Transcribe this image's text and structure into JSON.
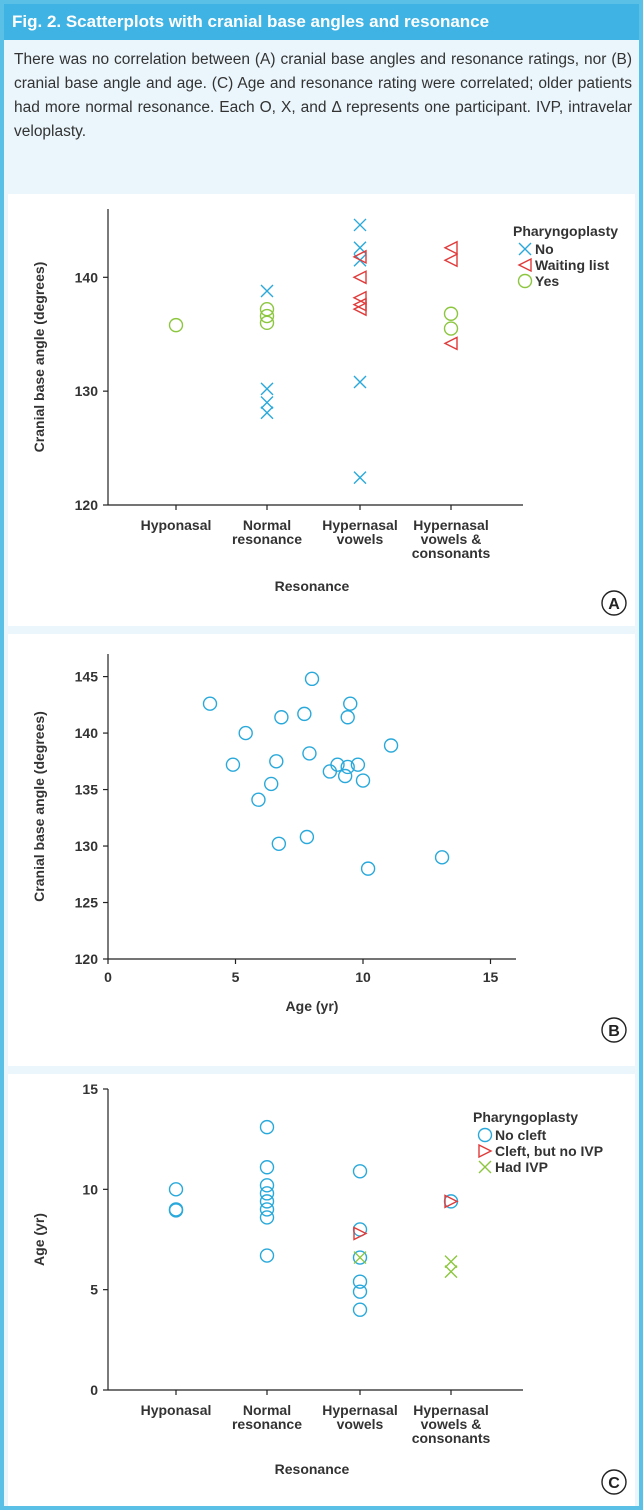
{
  "figure": {
    "title": "Fig. 2. Scatterplots with cranial base angles and resonance",
    "caption": "There was no correlation between (A) cranial base angles and resonance ratings, nor (B) cranial base angle and age. (C) Age and resonance rating were correlated; older patients had more normal resonance. Each O, X, and Δ represents one participant. IVP, intravelar veloplasty."
  },
  "colors": {
    "accent": "#3fb3e3",
    "blue": "#29a9db",
    "red": "#e03a3a",
    "green": "#8cc63f"
  },
  "chart_data": [
    {
      "panel": "A",
      "type": "scatter",
      "xlabel": "Resonance",
      "ylabel": "Cranial base angle (degrees)",
      "categories": [
        [
          "Hyponasal"
        ],
        [
          "Normal",
          "resonance"
        ],
        [
          "Hypernasal",
          "vowels"
        ],
        [
          "Hypernasal",
          "vowels &",
          "consonants"
        ]
      ],
      "ylim": [
        120,
        146
      ],
      "yticks": [
        120,
        130,
        140
      ],
      "legend_title": "Pharyngoplasty",
      "legend_position": "top-right",
      "series": [
        {
          "name": "No",
          "marker": "x",
          "color": "#29a9db",
          "points": [
            [
              1,
              138.8
            ],
            [
              1,
              130.2
            ],
            [
              1,
              129.0
            ],
            [
              1,
              128.1
            ],
            [
              2,
              144.6
            ],
            [
              2,
              142.6
            ],
            [
              2,
              141.5
            ],
            [
              2,
              130.8
            ],
            [
              2,
              122.4
            ]
          ]
        },
        {
          "name": "Waiting list",
          "marker": "triangle-left",
          "color": "#e03a3a",
          "points": [
            [
              2,
              141.8
            ],
            [
              2,
              140.0
            ],
            [
              2,
              138.2
            ],
            [
              2,
              137.6
            ],
            [
              2,
              137.2
            ],
            [
              3,
              142.6
            ],
            [
              3,
              141.5
            ],
            [
              3,
              134.2
            ]
          ]
        },
        {
          "name": "Yes",
          "marker": "circle",
          "color": "#8cc63f",
          "points": [
            [
              0,
              135.8
            ],
            [
              1,
              137.2
            ],
            [
              1,
              136.6
            ],
            [
              1,
              136.0
            ],
            [
              3,
              136.8
            ],
            [
              3,
              135.5
            ]
          ]
        }
      ]
    },
    {
      "panel": "B",
      "type": "scatter",
      "xlabel": "Age (yr)",
      "ylabel": "Cranial base angle (degrees)",
      "xlim": [
        0,
        16
      ],
      "ylim": [
        120,
        147
      ],
      "xticks": [
        0,
        5,
        10,
        15
      ],
      "yticks": [
        120,
        125,
        130,
        135,
        140,
        145
      ],
      "series": [
        {
          "marker": "circle",
          "color": "#29a9db",
          "points": [
            [
              4.0,
              142.6
            ],
            [
              4.9,
              137.2
            ],
            [
              5.4,
              140.0
            ],
            [
              5.9,
              134.1
            ],
            [
              6.4,
              135.5
            ],
            [
              6.6,
              137.5
            ],
            [
              6.7,
              130.2
            ],
            [
              6.8,
              141.4
            ],
            [
              7.7,
              141.7
            ],
            [
              7.8,
              130.8
            ],
            [
              7.9,
              138.2
            ],
            [
              8.0,
              144.8
            ],
            [
              8.7,
              136.6
            ],
            [
              9.0,
              137.2
            ],
            [
              9.3,
              136.2
            ],
            [
              9.4,
              141.4
            ],
            [
              9.4,
              137.0
            ],
            [
              9.5,
              142.6
            ],
            [
              9.8,
              137.2
            ],
            [
              10.0,
              135.8
            ],
            [
              10.2,
              128.0
            ],
            [
              11.1,
              138.9
            ],
            [
              13.1,
              129.0
            ]
          ]
        }
      ]
    },
    {
      "panel": "C",
      "type": "scatter",
      "xlabel": "Resonance",
      "ylabel": "Age (yr)",
      "categories": [
        [
          "Hyponasal"
        ],
        [
          "Normal",
          "resonance"
        ],
        [
          "Hypernasal",
          "vowels"
        ],
        [
          "Hypernasal",
          "vowels &",
          "consonants"
        ]
      ],
      "ylim": [
        0,
        15
      ],
      "yticks": [
        0,
        5,
        10,
        15
      ],
      "legend_title": "Pharyngoplasty",
      "legend_position": "top-right",
      "series": [
        {
          "name": "No cleft",
          "marker": "circle",
          "color": "#29a9db",
          "points": [
            [
              0,
              10.0
            ],
            [
              0,
              9.0
            ],
            [
              0,
              8.95
            ],
            [
              1,
              13.1
            ],
            [
              1,
              11.1
            ],
            [
              1,
              10.2
            ],
            [
              1,
              9.8
            ],
            [
              1,
              9.4
            ],
            [
              1,
              9.0
            ],
            [
              1,
              8.6
            ],
            [
              1,
              6.7
            ],
            [
              2,
              10.9
            ],
            [
              2,
              8.0
            ],
            [
              2,
              6.6
            ],
            [
              2,
              5.4
            ],
            [
              2,
              4.9
            ],
            [
              2,
              4.0
            ],
            [
              3,
              9.4
            ]
          ]
        },
        {
          "name": "Cleft, but no IVP",
          "marker": "triangle-right",
          "color": "#e03a3a",
          "points": [
            [
              2,
              7.8
            ],
            [
              3,
              9.4
            ]
          ]
        },
        {
          "name": "Had IVP",
          "marker": "x",
          "color": "#8cc63f",
          "points": [
            [
              2,
              6.6
            ],
            [
              3,
              6.4
            ],
            [
              3,
              5.9
            ]
          ]
        }
      ]
    }
  ],
  "panel_labels": [
    "A",
    "B",
    "C"
  ]
}
